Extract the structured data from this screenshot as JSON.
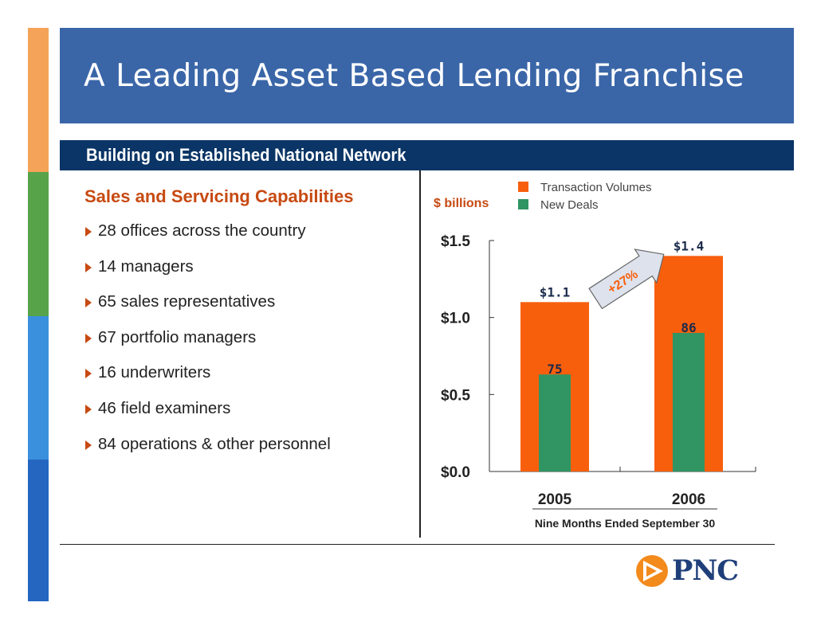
{
  "colors": {
    "orange": "#f85f0d",
    "green": "#319463",
    "title_blue": "#3a66a8",
    "navy": "#0a3566",
    "heading_red": "#c74a12",
    "stripes": [
      "#f4a358",
      "#56a34a",
      "#3a90dd",
      "#2466c0"
    ]
  },
  "title": "A Leading Asset Based Lending Franchise",
  "subtitle": "Building on Established National Network",
  "left_panel": {
    "heading": "Sales and Servicing Capabilities",
    "bullets": [
      "28 offices across the country",
      "14 managers",
      "65 sales representatives",
      "67 portfolio managers",
      "16 underwriters",
      "46 field examiners",
      "84 operations & other personnel"
    ]
  },
  "chart_data": {
    "type": "bar",
    "unit_label": "$ billions",
    "categories": [
      "2005",
      "2006"
    ],
    "xlabel": "Nine Months Ended September 30",
    "ylim": [
      0,
      1.5
    ],
    "yticks": [
      "$0.0",
      "$0.5",
      "$1.0",
      "$1.5"
    ],
    "ytick_values": [
      0,
      0.5,
      1.0,
      1.5
    ],
    "series": [
      {
        "name": "Transaction Volumes",
        "color": "#f85f0d",
        "values": [
          1.1,
          1.4
        ],
        "labels": [
          "$1.1",
          "$1.4"
        ]
      },
      {
        "name": "New Deals",
        "color": "#319463",
        "values": [
          0.63,
          0.9
        ],
        "labels": [
          "75",
          "86"
        ]
      }
    ],
    "annotation": "+27%",
    "legend_position": "top-right"
  },
  "logo": {
    "text": "PNC",
    "icon": "pnc-triangle-logo-icon"
  }
}
